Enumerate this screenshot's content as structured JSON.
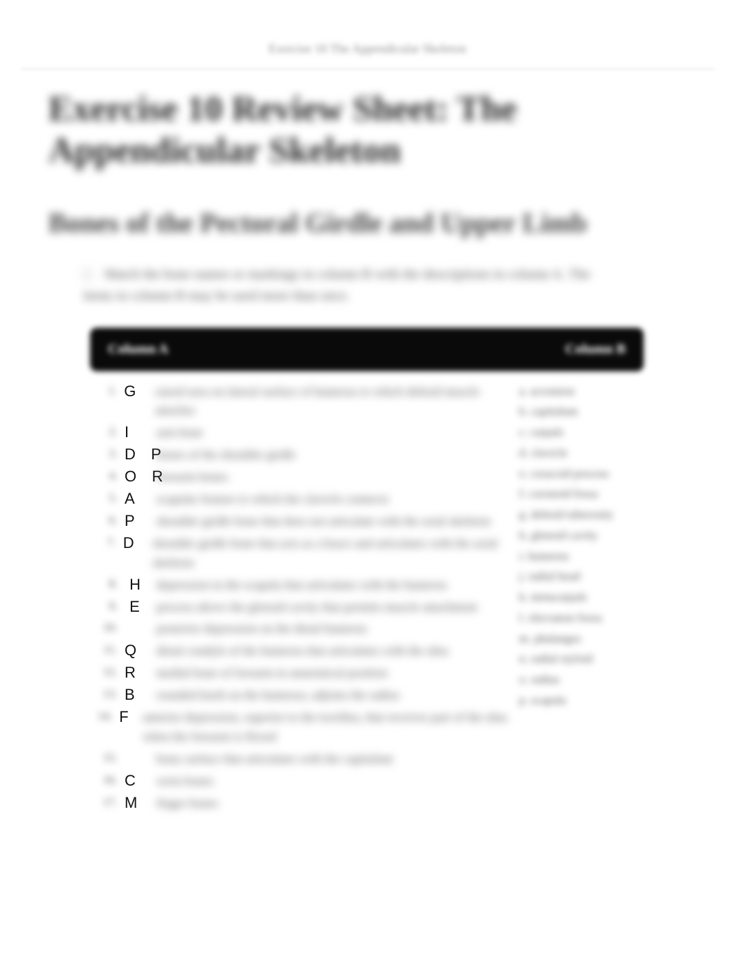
{
  "top_label": "Exercise 10 The Appendicular Skeleton",
  "title": "Exercise 10 Review Sheet: The Appendicular Skeleton",
  "section_heading": "Bones of the Pectoral Girdle and Upper Limb",
  "instruction_number": "1.",
  "instruction_text": "Match the bone names or markings in column B with the descriptions in column A. The items in column B may be used more than once.",
  "col_a_header": "Column A",
  "col_b_header": "Column B",
  "colA": [
    {
      "idx": "1.",
      "answer": "G",
      "desc": "raised area on lateral surface of humerus to which deltoid muscle attaches"
    },
    {
      "idx": "2.",
      "answer": "I",
      "desc": "arm bone"
    },
    {
      "idx": "3.",
      "answer": "D   P",
      "desc": "bones of the shoulder girdle"
    },
    {
      "idx": "4.",
      "answer": "O   R",
      "desc": "forearm bones"
    },
    {
      "idx": "5.",
      "answer": "A",
      "desc": "scapular feature to which the clavicle connects"
    },
    {
      "idx": "6.",
      "answer": "P",
      "desc": "shoulder girdle bone that does not articulate with the axial skeleton"
    },
    {
      "idx": "7.",
      "answer": "D",
      "desc": "shoulder girdle bone that acts as a brace and articulates with the axial skeleton"
    },
    {
      "idx": "8.",
      "answer": " H",
      "desc": "depression in the scapula that articulates with the humerus"
    },
    {
      "idx": "9.",
      "answer": " E",
      "desc": "process above the glenoid cavity that permits muscle attachment"
    },
    {
      "idx": "10.",
      "answer": "",
      "desc": "posterior depression on the distal humerus"
    },
    {
      "idx": "11.",
      "answer": "Q",
      "desc": "distal condyle of the humerus that articulates with the ulna"
    },
    {
      "idx": "12.",
      "answer": "R",
      "desc": "medial bone of forearm in anatomical position"
    },
    {
      "idx": "13.",
      "answer": "B",
      "desc": "rounded knob on the humerus; adjoins the radius"
    },
    {
      "idx": "14.",
      "answer": "F",
      "desc": "anterior depression, superior to the trochlea, that receives part of the ulna when the forearm is flexed"
    },
    {
      "idx": "15.",
      "answer": "",
      "desc": "bony surface that articulates with the capitulum"
    },
    {
      "idx": "16.",
      "answer": "C",
      "desc": "wrist bones"
    },
    {
      "idx": "17.",
      "answer": "M",
      "desc": "finger bones"
    }
  ],
  "colB": [
    "a. acromion",
    "b. capitulum",
    "c. carpals",
    "d. clavicle",
    "e. coracoid process",
    "f. coronoid fossa",
    "g. deltoid tuberosity",
    "h. glenoid cavity",
    "i. humerus",
    "j. radial head",
    "k. metacarpals",
    "l. olecranon fossa",
    "m. phalanges",
    "n. radial styloid",
    "o. radius",
    "p. scapula"
  ],
  "colors": {
    "page_bg": "#ffffff",
    "header_bg": "#0a0a0a",
    "header_fg": "#ffffff",
    "body_text": "#333333",
    "blur_text": "#555555",
    "answer_text": "#111111"
  }
}
